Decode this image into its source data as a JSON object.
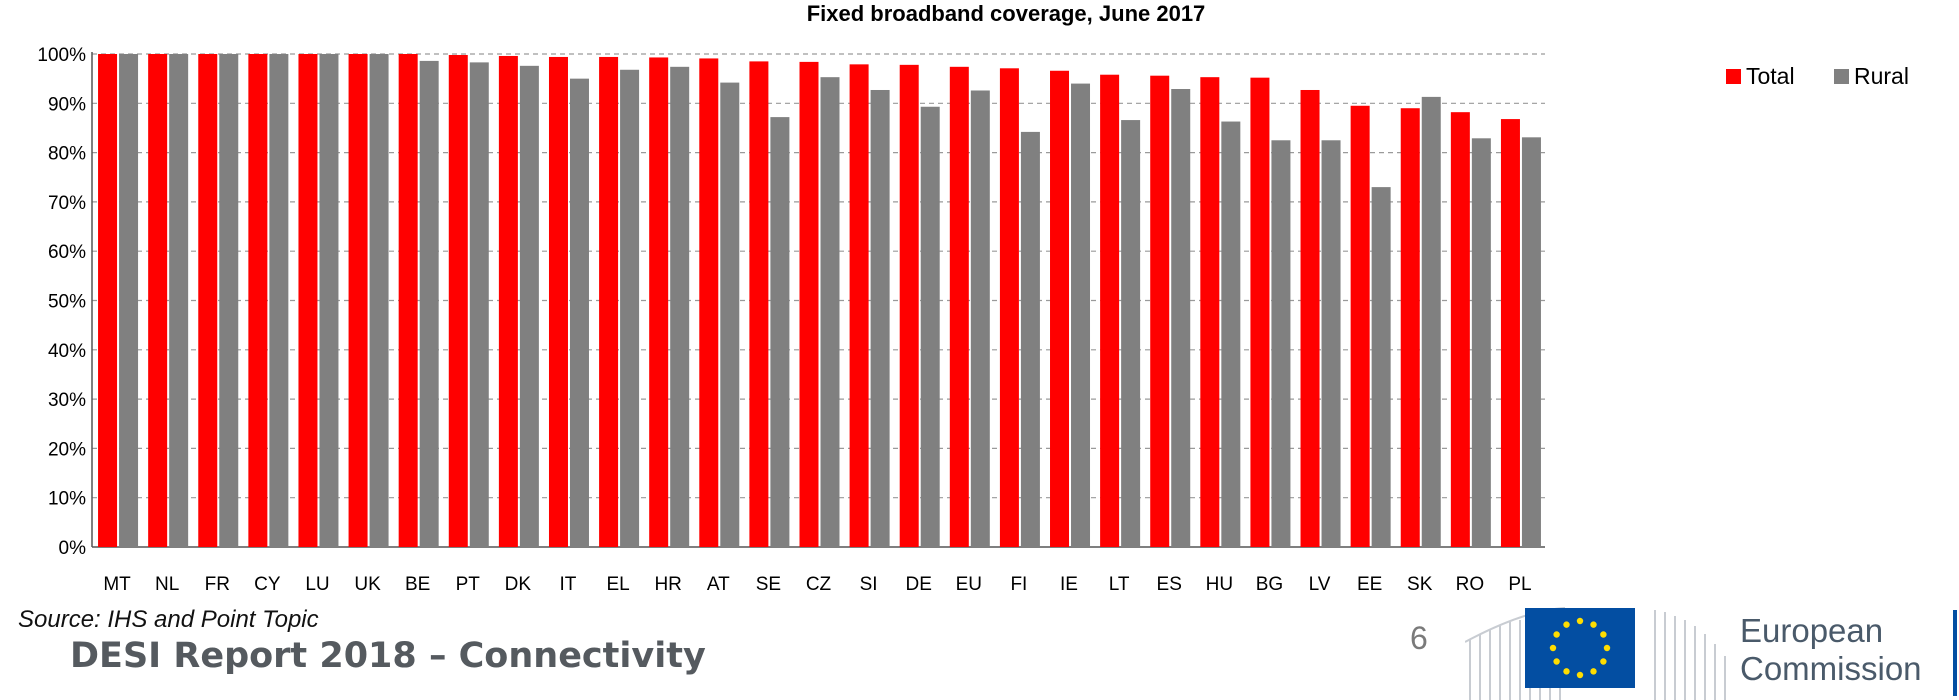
{
  "chart_data": {
    "type": "bar",
    "title": "Fixed  broadband coverage, June 2017",
    "categories": [
      "MT",
      "NL",
      "FR",
      "CY",
      "LU",
      "UK",
      "BE",
      "PT",
      "DK",
      "IT",
      "EL",
      "HR",
      "AT",
      "SE",
      "CZ",
      "SI",
      "DE",
      "EU",
      "FI",
      "IE",
      "LT",
      "ES",
      "HU",
      "BG",
      "LV",
      "EE",
      "SK",
      "RO",
      "PL"
    ],
    "series": [
      {
        "name": "Total",
        "color": "#ff0000",
        "values": [
          100,
          100,
          100,
          100,
          100,
          100,
          100,
          99.8,
          99.6,
          99.4,
          99.4,
          99.3,
          99.1,
          98.5,
          98.4,
          97.9,
          97.8,
          97.4,
          97.1,
          96.6,
          95.8,
          95.6,
          95.3,
          95.2,
          92.7,
          89.5,
          89.0,
          88.2,
          86.8
        ]
      },
      {
        "name": "Rural",
        "color": "#808080",
        "values": [
          100,
          100,
          100,
          100,
          100,
          100,
          98.6,
          98.3,
          97.6,
          95.0,
          96.8,
          97.4,
          94.2,
          87.2,
          95.3,
          92.7,
          89.3,
          92.6,
          84.2,
          94.0,
          86.6,
          92.9,
          86.3,
          82.5,
          82.5,
          73.0,
          91.3,
          82.9,
          83.1
        ]
      }
    ],
    "ylim": [
      0,
      100
    ],
    "yticks": [
      "0%",
      "10%",
      "20%",
      "30%",
      "40%",
      "50%",
      "60%",
      "70%",
      "80%",
      "90%",
      "100%"
    ],
    "grid": true,
    "legend_position": "top-right"
  },
  "footer": {
    "source": "Source: IHS and Point Topic",
    "report": "DESI Report 2018 – Connectivity",
    "page": "6",
    "brand_line1": "European",
    "brand_line2": "Commission"
  }
}
